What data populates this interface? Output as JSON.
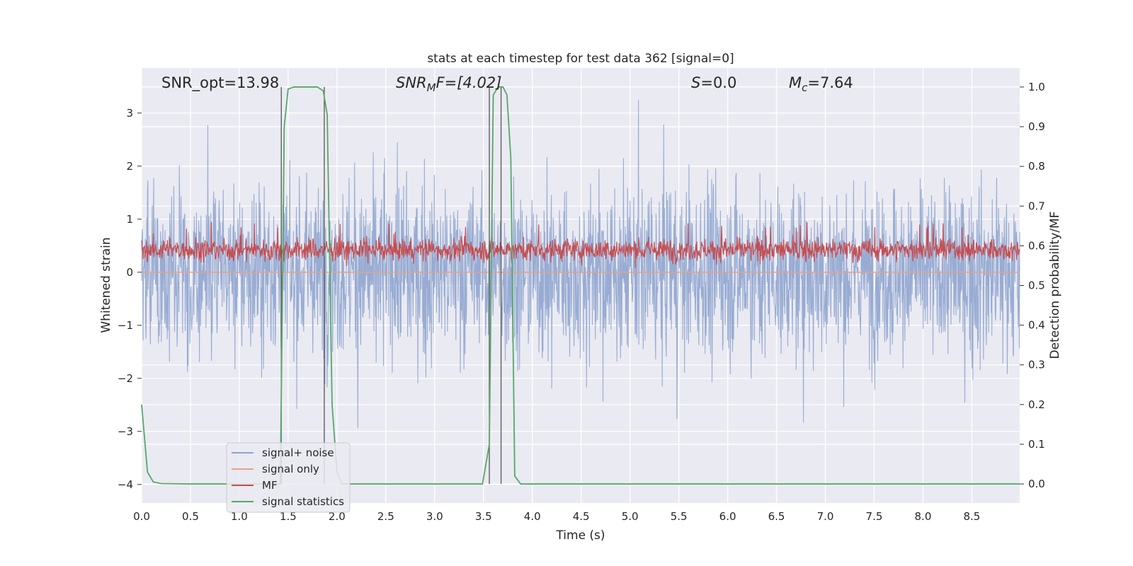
{
  "chart_data": {
    "type": "line",
    "title": "stats at each timestep for test data 362 [signal=0]",
    "xlabel": "Time (s)",
    "ylabel": "Whitened strain",
    "y2label": "Detection probability/MF",
    "xlim": [
      0,
      8.99
    ],
    "ylim": [
      -4.35,
      3.85
    ],
    "y2lim": [
      -0.048,
      1.048
    ],
    "xticks": [
      "0.0",
      "0.5",
      "1.0",
      "1.5",
      "2.0",
      "2.5",
      "3.0",
      "3.5",
      "4.0",
      "4.5",
      "5.0",
      "5.5",
      "6.0",
      "6.5",
      "7.0",
      "7.5",
      "8.0",
      "8.5"
    ],
    "yticks": [
      "3",
      "2",
      "1",
      "0",
      "−1",
      "−2",
      "−3",
      "−4"
    ],
    "y2ticks": [
      "1.0",
      "0.9",
      "0.8",
      "0.7",
      "0.6",
      "0.5",
      "0.4",
      "0.3",
      "0.2",
      "0.1",
      "0.0"
    ],
    "grid": true,
    "legend_position": "lower-left",
    "annotations": {
      "snr_opt": "SNR_opt=13.98",
      "snr_mf": "SNR",
      "snr_mf_sub": "M",
      "snr_mf_rest": "F=[4.02]",
      "s_sym": "S",
      "s_val": "=0.0",
      "mc_sym": "M",
      "mc_sub": "c",
      "mc_val": "=7.64"
    },
    "vertical_markers": [
      1.43,
      1.87,
      3.56,
      3.68
    ],
    "series": [
      {
        "name": "signal+ noise",
        "color": "#8fa5cf",
        "axis": "left",
        "style": "dense noise",
        "envelope": {
          "min": -4.0,
          "max": 3.5,
          "typical_abs": 2.0
        }
      },
      {
        "name": "signal only",
        "color": "#e8a183",
        "axis": "left",
        "values_note": "flat at 0"
      },
      {
        "name": "MF",
        "color": "#c44e52",
        "axis": "right",
        "style": "dense noise",
        "band": [
          0.54,
          0.64
        ],
        "peaks": [
          0.66
        ]
      },
      {
        "name": "signal statistics",
        "color": "#55a868",
        "axis": "right",
        "points": [
          [
            0.0,
            0.2
          ],
          [
            0.06,
            0.03
          ],
          [
            0.12,
            0.005
          ],
          [
            0.2,
            0.001
          ],
          [
            0.5,
            0.0
          ],
          [
            1.42,
            0.0
          ],
          [
            1.46,
            0.9
          ],
          [
            1.5,
            0.995
          ],
          [
            1.56,
            1.0
          ],
          [
            1.8,
            1.0
          ],
          [
            1.86,
            0.99
          ],
          [
            1.9,
            0.93
          ],
          [
            1.95,
            0.2
          ],
          [
            2.0,
            0.03
          ],
          [
            2.05,
            0.0
          ],
          [
            3.49,
            0.0
          ],
          [
            3.56,
            0.1
          ],
          [
            3.6,
            0.98
          ],
          [
            3.65,
            1.0
          ],
          [
            3.7,
            1.0
          ],
          [
            3.74,
            0.98
          ],
          [
            3.78,
            0.82
          ],
          [
            3.82,
            0.02
          ],
          [
            3.88,
            0.0
          ],
          [
            8.99,
            0.0
          ]
        ]
      }
    ]
  }
}
